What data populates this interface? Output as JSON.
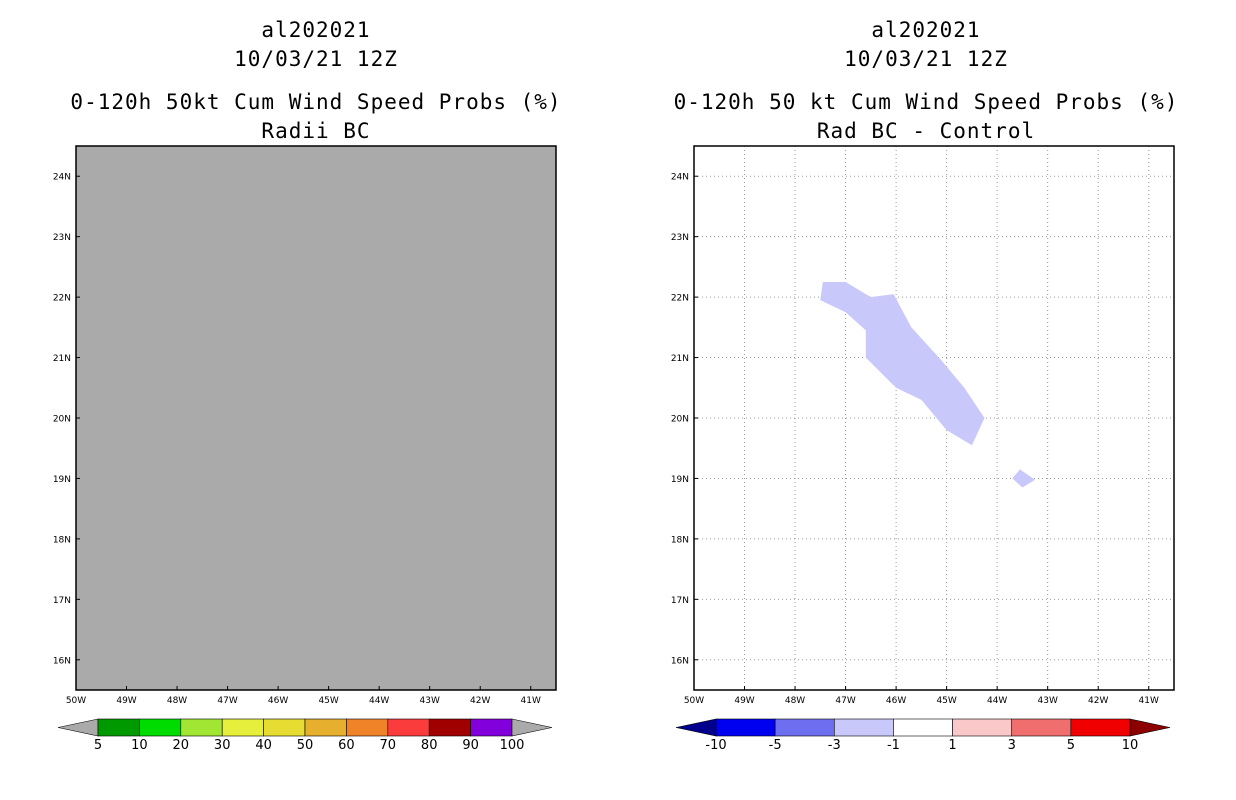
{
  "chart_data": [
    {
      "type": "heatmap",
      "storm_id": "al202021",
      "datetime": "10/03/21 12Z",
      "title": "0-120h 50kt Cum Wind Speed Probs (%)",
      "subtitle": "Radii BC",
      "background_color": "#aaaaaa",
      "xlim": [
        -50,
        -40.5
      ],
      "ylim": [
        15.5,
        24.5
      ],
      "x_ticks": [
        "50W",
        "49W",
        "48W",
        "47W",
        "46W",
        "45W",
        "44W",
        "43W",
        "42W",
        "41W"
      ],
      "x_tick_values": [
        -50,
        -49,
        -48,
        -47,
        -46,
        -45,
        -44,
        -43,
        -42,
        -41
      ],
      "y_ticks": [
        "16N",
        "17N",
        "18N",
        "19N",
        "20N",
        "21N",
        "22N",
        "23N",
        "24N"
      ],
      "y_tick_values": [
        16,
        17,
        18,
        19,
        20,
        21,
        22,
        23,
        24
      ],
      "grid": false,
      "colorbar": {
        "labels": [
          "5",
          "10",
          "20",
          "30",
          "40",
          "50",
          "60",
          "70",
          "80",
          "90",
          "100"
        ],
        "colors": [
          "#aaaaaa",
          "#009a00",
          "#00dc00",
          "#a0e632",
          "#e6f03c",
          "#e6dc32",
          "#e6af2d",
          "#f08228",
          "#fa3c3c",
          "#a00000",
          "#8200dc",
          "#aaaaaa"
        ]
      }
    },
    {
      "type": "heatmap",
      "storm_id": "al202021",
      "datetime": "10/03/21 12Z",
      "title": "0-120h 50 kt Cum Wind Speed Probs (%)",
      "subtitle": "Rad BC - Control",
      "background_color": "#ffffff",
      "xlim": [
        -50,
        -40.5
      ],
      "ylim": [
        15.5,
        24.5
      ],
      "x_ticks": [
        "50W",
        "49W",
        "48W",
        "47W",
        "46W",
        "45W",
        "44W",
        "43W",
        "42W",
        "41W"
      ],
      "x_tick_values": [
        -50,
        -49,
        -48,
        -47,
        -46,
        -45,
        -44,
        -43,
        -42,
        -41
      ],
      "y_ticks": [
        "16N",
        "17N",
        "18N",
        "19N",
        "20N",
        "21N",
        "22N",
        "23N",
        "24N"
      ],
      "y_tick_values": [
        16,
        17,
        18,
        19,
        20,
        21,
        22,
        23,
        24
      ],
      "grid": true,
      "shaded_regions": [
        {
          "value_range": "-3 to -1",
          "color": "#c8c8fa",
          "lonlat": [
            [
              -47.45,
              22.25
            ],
            [
              -47.0,
              22.25
            ],
            [
              -46.5,
              22.0
            ],
            [
              -46.05,
              22.05
            ],
            [
              -45.7,
              21.5
            ],
            [
              -45.1,
              20.95
            ],
            [
              -44.65,
              20.5
            ],
            [
              -44.25,
              20.0
            ],
            [
              -44.5,
              19.55
            ],
            [
              -45.0,
              19.8
            ],
            [
              -45.5,
              20.3
            ],
            [
              -46.0,
              20.5
            ],
            [
              -46.6,
              21.0
            ],
            [
              -46.6,
              21.45
            ],
            [
              -47.0,
              21.75
            ],
            [
              -47.5,
              21.95
            ]
          ]
        },
        {
          "value_range": "-3 to -1",
          "color": "#c8c8fa",
          "lonlat": [
            [
              -43.55,
              19.15
            ],
            [
              -43.25,
              18.98
            ],
            [
              -43.5,
              18.85
            ],
            [
              -43.7,
              19.0
            ]
          ]
        }
      ],
      "colorbar": {
        "labels": [
          "-10",
          "-5",
          "-3",
          "-1",
          "1",
          "3",
          "5",
          "10"
        ],
        "colors": [
          "#00008c",
          "#0000f0",
          "#6e6ef0",
          "#c8c8fa",
          "#ffffff",
          "#fac8c8",
          "#f06e6e",
          "#f00000",
          "#8c0000"
        ]
      }
    }
  ]
}
